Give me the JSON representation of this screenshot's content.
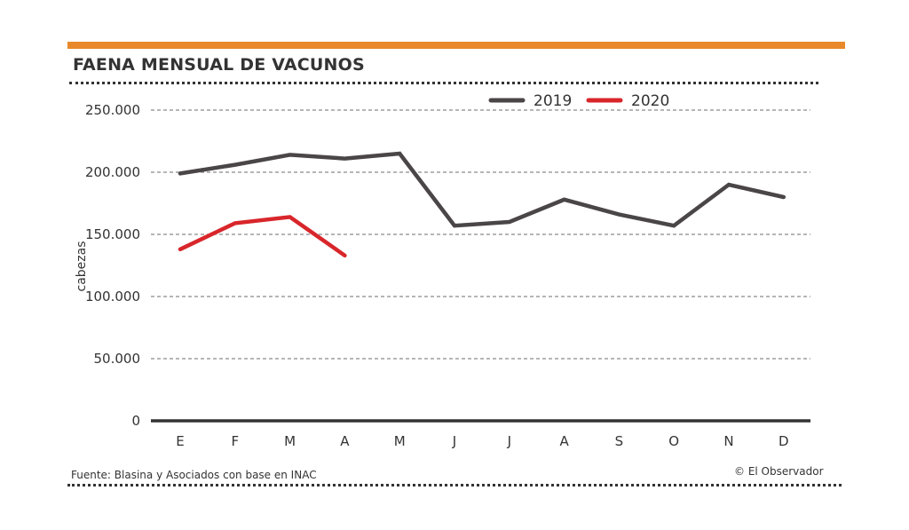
{
  "colors": {
    "accent_bar": "#e8892b",
    "series_2019": "#4a4546",
    "series_2020": "#d8262b",
    "text": "#333333",
    "grid": "#8a8a8a"
  },
  "header": {
    "title": "FAENA MENSUAL DE VACUNOS"
  },
  "footer": {
    "source": "Fuente: Blasina y Asociados con base en INAC",
    "credit": "© El Observador"
  },
  "chart_data": {
    "type": "line",
    "title": "FAENA MENSUAL DE VACUNOS",
    "xlabel": "",
    "ylabel": "cabezas",
    "categories": [
      "E",
      "F",
      "M",
      "A",
      "M",
      "J",
      "J",
      "A",
      "S",
      "O",
      "N",
      "D"
    ],
    "ylim": [
      0,
      250000
    ],
    "yticks": [
      0,
      50000,
      100000,
      150000,
      200000,
      250000
    ],
    "ytick_labels": [
      "0",
      "50.000",
      "100.000",
      "150.000",
      "200.000",
      "250.000"
    ],
    "grid": true,
    "legend_position": "top-right",
    "series": [
      {
        "name": "2019",
        "color": "#4a4546",
        "values": [
          199000,
          206000,
          214000,
          211000,
          215000,
          157000,
          160000,
          178000,
          166000,
          157000,
          190000,
          180000
        ]
      },
      {
        "name": "2020",
        "color": "#d8262b",
        "values": [
          138000,
          159000,
          164000,
          133000,
          null,
          null,
          null,
          null,
          null,
          null,
          null,
          null
        ]
      }
    ]
  }
}
